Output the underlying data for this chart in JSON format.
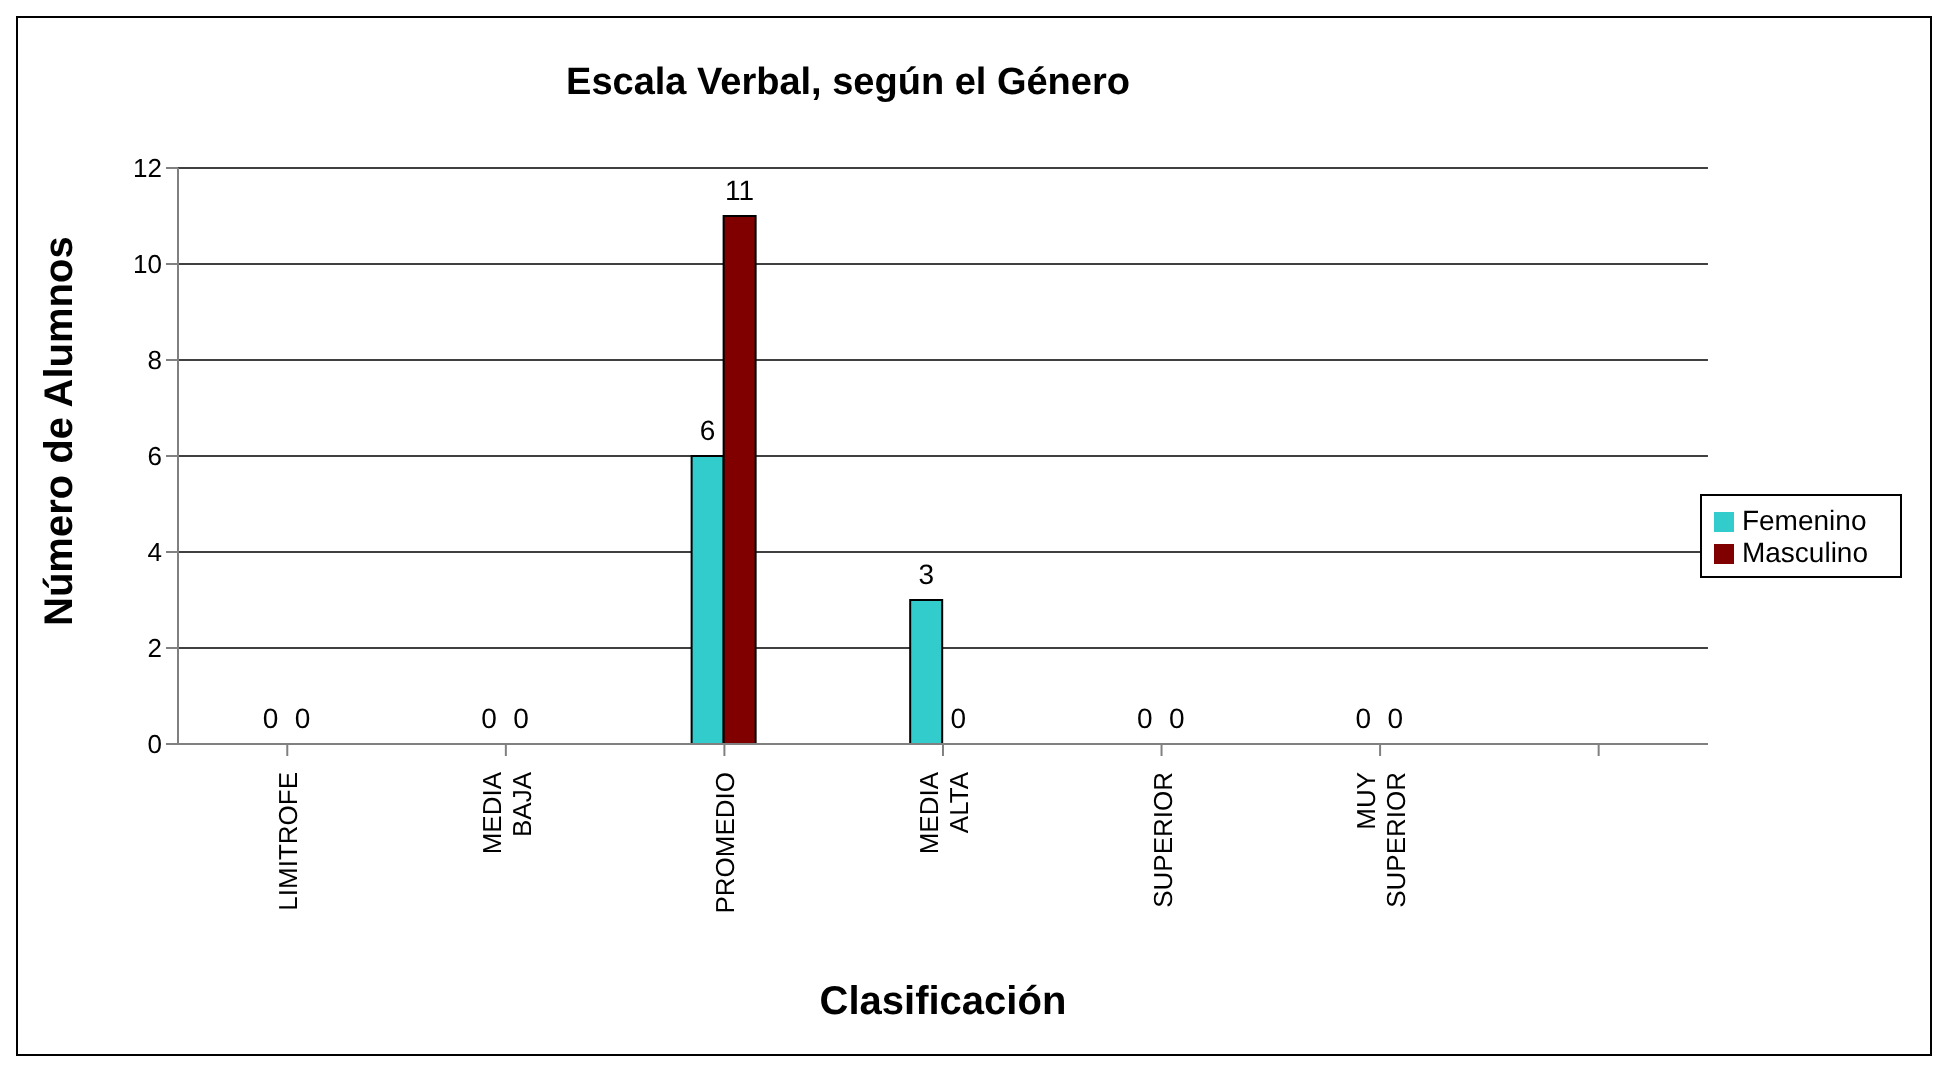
{
  "chart_data": {
    "type": "bar",
    "title": "Escala Verbal, según el Género",
    "xlabel": "Clasificación",
    "ylabel": "Número de Alumnos",
    "categories": [
      "LIMITROFE",
      "MEDIA BAJA",
      "PROMEDIO",
      "MEDIA ALTA",
      "SUPERIOR",
      "MUY SUPERIOR",
      null
    ],
    "series": [
      {
        "name": "Femenino",
        "color": "#33cccc",
        "values": [
          0,
          0,
          6,
          3,
          0,
          0,
          null
        ]
      },
      {
        "name": "Masculino",
        "color": "#800000",
        "values": [
          0,
          0,
          11,
          0,
          0,
          0,
          null
        ]
      }
    ],
    "ylim": [
      0,
      12
    ],
    "yticks": [
      0,
      2,
      4,
      6,
      8,
      10,
      12
    ],
    "grid": "y",
    "legend": "right",
    "data_labels": true
  }
}
